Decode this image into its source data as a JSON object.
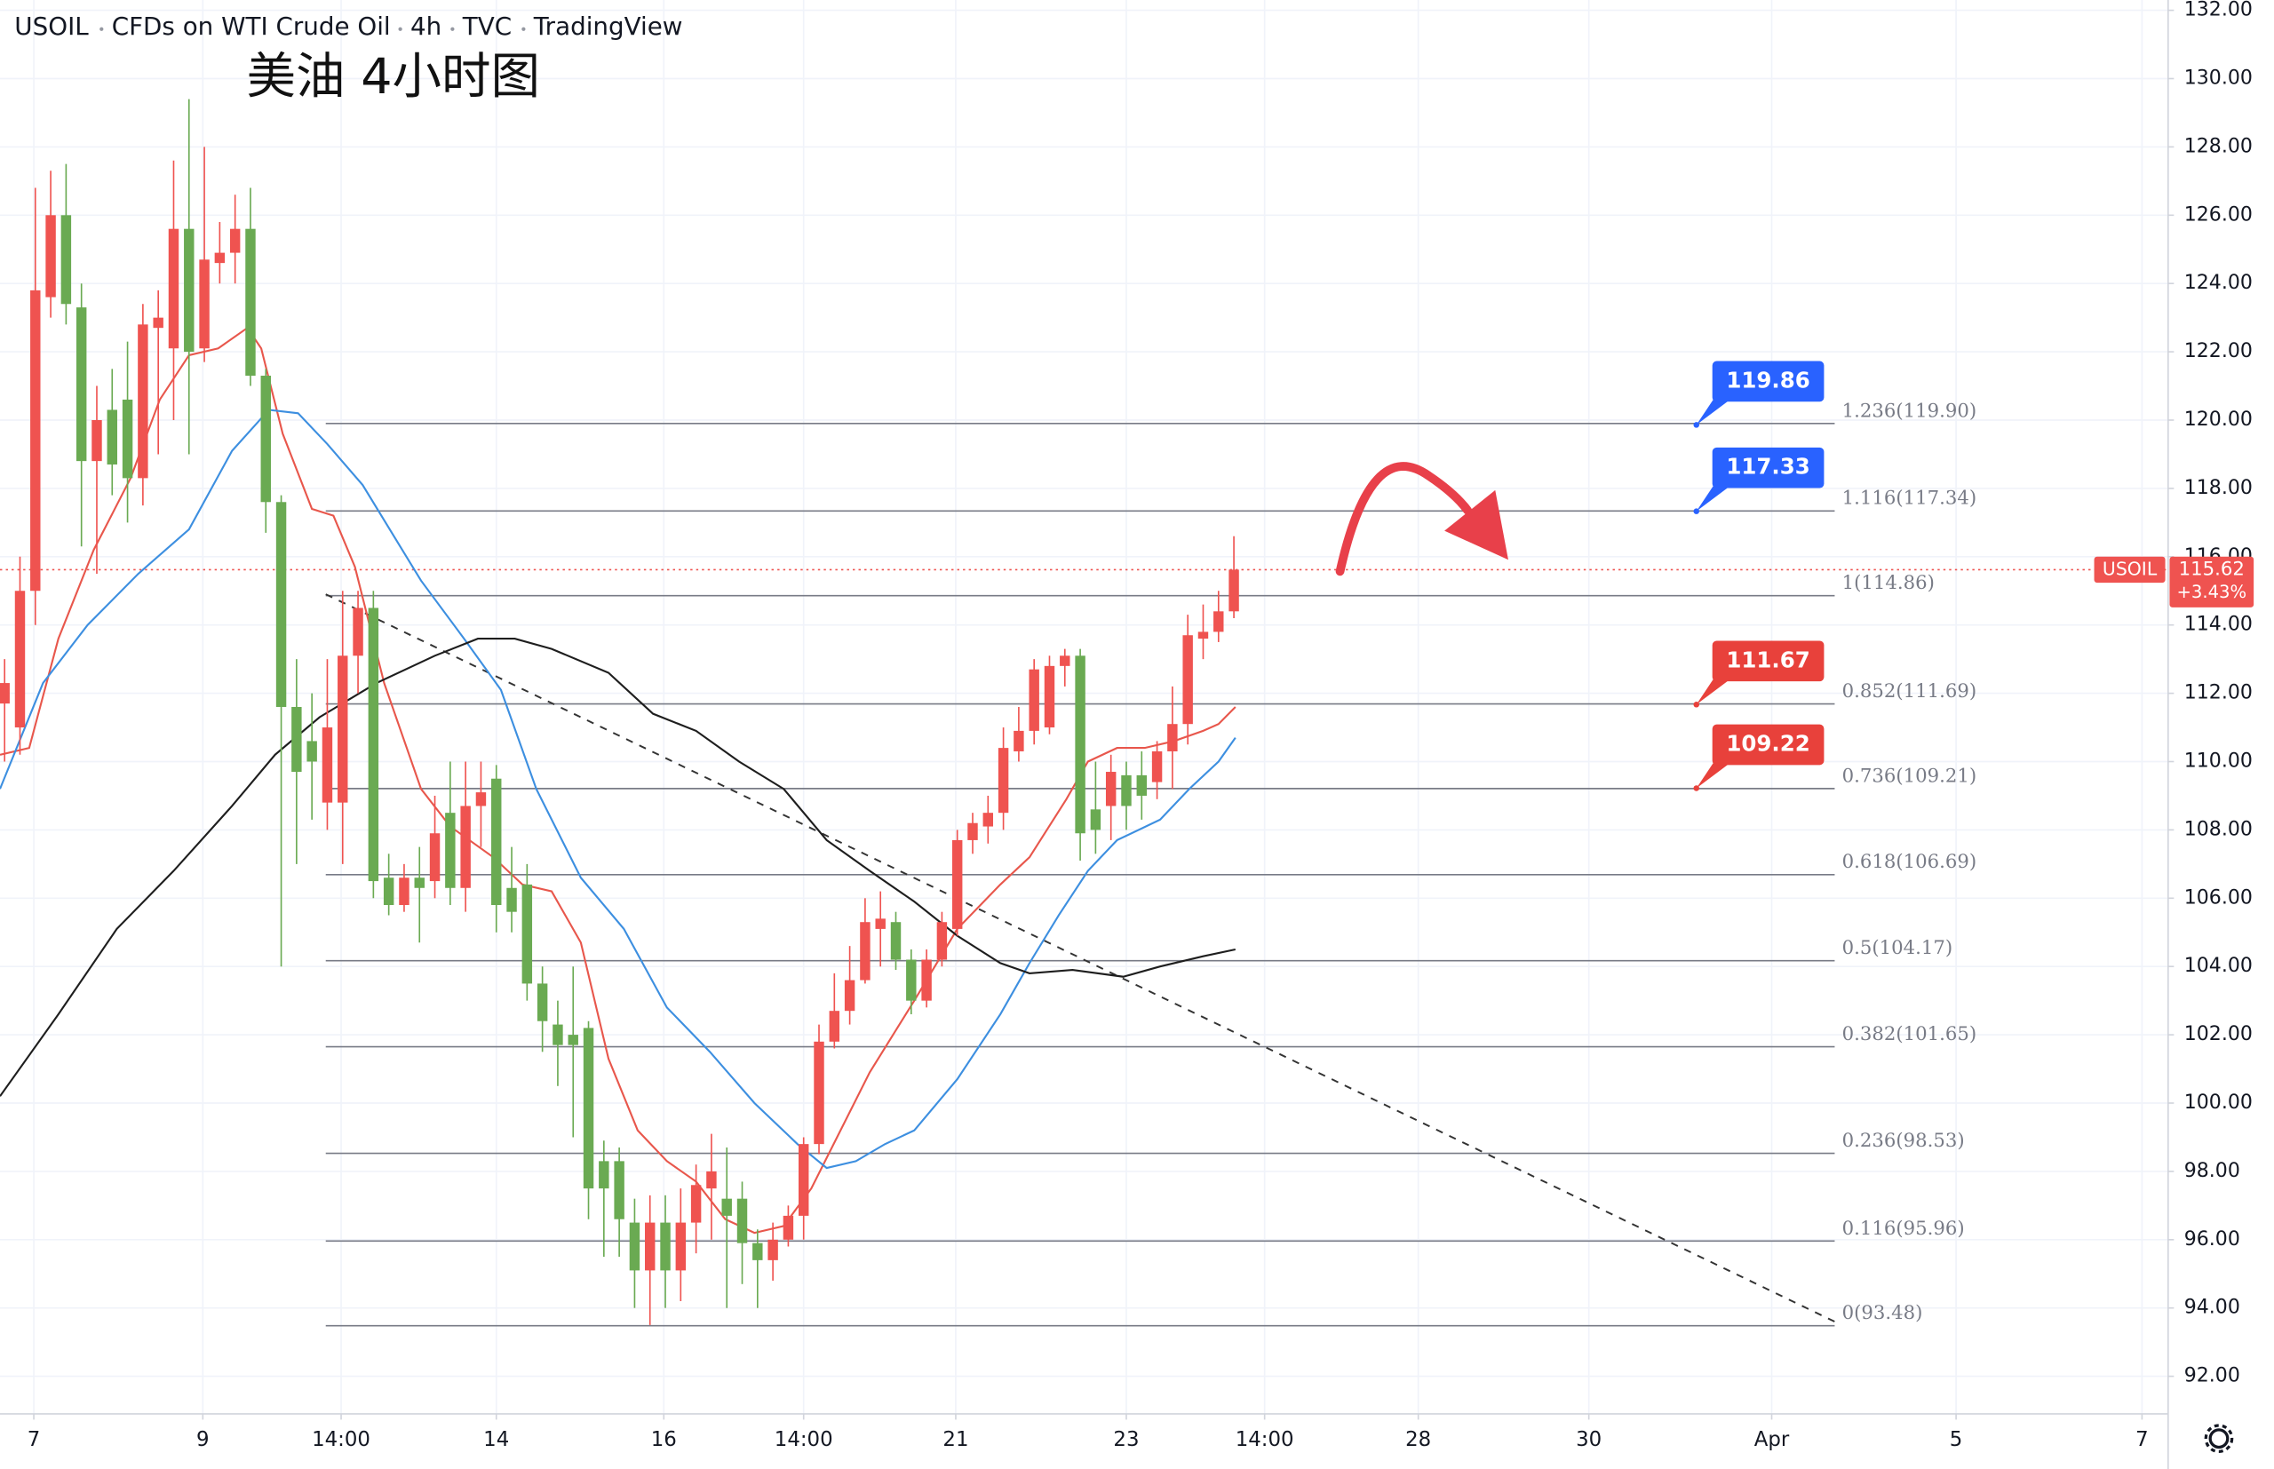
{
  "chart_data": {
    "type": "candlestick",
    "header": [
      "USOIL",
      "CFDs on WTI Crude Oil",
      "4h",
      "TVC",
      "TradingView"
    ],
    "title": "美油 4小时图",
    "up_color": "#ef5350",
    "down_color": "#6aaa52",
    "grid": true,
    "xlim": [
      -0.3,
      140.8
    ],
    "ylim": [
      90.9,
      132.3
    ],
    "xticks": [
      {
        "value": 1.9,
        "label": "7"
      },
      {
        "value": 12.9,
        "label": "9"
      },
      {
        "value": 21.9,
        "label": "14:00"
      },
      {
        "value": 32,
        "label": "14"
      },
      {
        "value": 42.9,
        "label": "16"
      },
      {
        "value": 52,
        "label": "14:00"
      },
      {
        "value": 61.9,
        "label": "21"
      },
      {
        "value": 73,
        "label": "23"
      },
      {
        "value": 82,
        "label": "14:00"
      },
      {
        "value": 92,
        "label": "28"
      },
      {
        "value": 103.1,
        "label": "30"
      },
      {
        "value": 115,
        "label": "Apr"
      },
      {
        "value": 127,
        "label": "5"
      },
      {
        "value": 139.1,
        "label": "7"
      }
    ],
    "yticks": [
      {
        "value": 92,
        "label": "92.00"
      },
      {
        "value": 94,
        "label": "94.00"
      },
      {
        "value": 96,
        "label": "96.00"
      },
      {
        "value": 98,
        "label": "98.00"
      },
      {
        "value": 100,
        "label": "100.00"
      },
      {
        "value": 102,
        "label": "102.00"
      },
      {
        "value": 104,
        "label": "104.00"
      },
      {
        "value": 106,
        "label": "106.00"
      },
      {
        "value": 108,
        "label": "108.00"
      },
      {
        "value": 110,
        "label": "110.00"
      },
      {
        "value": 112,
        "label": "112.00"
      },
      {
        "value": 114,
        "label": "114.00"
      },
      {
        "value": 116,
        "label": "116.00"
      },
      {
        "value": 118,
        "label": "118.00"
      },
      {
        "value": 120,
        "label": "120.00"
      },
      {
        "value": 122,
        "label": "122.00"
      },
      {
        "value": 124,
        "label": "124.00"
      },
      {
        "value": 126,
        "label": "126.00"
      },
      {
        "value": 128,
        "label": "128.00"
      },
      {
        "value": 130,
        "label": "130.00"
      },
      {
        "value": 132,
        "label": "132.00"
      }
    ],
    "open": [
      111.7,
      111.0,
      115.0,
      123.6,
      126.0,
      123.3,
      118.8,
      120.3,
      120.6,
      118.3,
      122.7,
      122.1,
      125.6,
      122.1,
      124.6,
      124.9,
      125.6,
      121.3,
      117.6,
      111.6,
      110.6,
      108.8,
      108.8,
      113.1,
      114.5,
      106.6,
      105.8,
      106.6,
      106.5,
      108.5,
      106.3,
      108.7,
      109.5,
      106.3,
      106.4,
      103.5,
      102.3,
      102.0,
      102.2,
      98.3,
      98.3,
      96.5,
      95.1,
      96.5,
      95.1,
      96.5,
      97.5,
      97.2,
      97.2,
      95.9,
      95.4,
      96.0,
      96.7,
      98.8,
      101.8,
      102.7,
      103.6,
      105.1,
      105.3,
      104.2,
      103.0,
      104.2,
      105.1,
      107.7,
      108.1,
      108.5,
      110.3,
      110.9,
      111.0,
      112.8,
      113.1,
      108.6,
      108.7,
      109.6,
      109.6,
      109.4,
      110.3,
      111.1,
      113.6,
      113.8,
      114.4
    ],
    "high": [
      113.0,
      116.0,
      126.8,
      127.3,
      127.5,
      124.0,
      121.0,
      121.5,
      122.3,
      123.4,
      123.8,
      127.6,
      129.4,
      128.0,
      125.8,
      126.6,
      126.8,
      121.5,
      117.8,
      113.0,
      112.0,
      113.0,
      115.0,
      115.0,
      115.0,
      107.3,
      107.0,
      107.5,
      109.0,
      110.0,
      110.0,
      110.0,
      109.9,
      107.5,
      107.0,
      104.0,
      103.0,
      104.0,
      102.4,
      98.9,
      98.7,
      97.2,
      97.3,
      97.3,
      97.5,
      98.2,
      99.1,
      98.7,
      97.7,
      96.3,
      96.5,
      97.0,
      99.0,
      102.3,
      103.8,
      104.6,
      106.0,
      106.2,
      105.6,
      104.5,
      104.5,
      105.6,
      108.0,
      108.5,
      109.0,
      111.0,
      111.6,
      113.0,
      113.1,
      113.3,
      113.3,
      110.0,
      110.2,
      110.0,
      110.3,
      110.6,
      112.2,
      114.3,
      114.6,
      115.0,
      116.6
    ],
    "low": [
      110.0,
      110.2,
      114.0,
      123.0,
      122.8,
      116.3,
      115.5,
      117.8,
      117.0,
      117.5,
      119.0,
      120.0,
      119.0,
      121.7,
      124.0,
      124.0,
      121.0,
      116.7,
      104.0,
      107.0,
      108.3,
      108.0,
      107.0,
      112.0,
      106.0,
      105.5,
      105.6,
      104.7,
      106.0,
      105.8,
      105.6,
      107.5,
      105.0,
      105.0,
      103.0,
      101.5,
      100.5,
      99.0,
      96.6,
      95.5,
      95.5,
      94.0,
      93.5,
      94.0,
      94.2,
      95.6,
      96.0,
      94.0,
      94.7,
      94.0,
      94.8,
      95.8,
      96.0,
      98.5,
      101.6,
      102.3,
      103.5,
      104.0,
      103.9,
      102.6,
      102.8,
      104.0,
      104.9,
      107.3,
      107.6,
      108.0,
      110.0,
      110.5,
      110.8,
      112.2,
      107.1,
      107.3,
      107.7,
      108.0,
      108.3,
      108.9,
      109.2,
      110.5,
      113.0,
      113.5,
      114.2
    ],
    "close": [
      112.3,
      115.0,
      123.8,
      126.0,
      123.4,
      118.8,
      120.0,
      118.7,
      118.3,
      122.8,
      123.0,
      125.6,
      122.0,
      124.7,
      124.9,
      125.6,
      121.3,
      117.6,
      111.6,
      109.7,
      110.0,
      111.0,
      113.1,
      114.5,
      106.5,
      105.8,
      106.6,
      106.3,
      107.9,
      106.3,
      108.7,
      109.1,
      105.8,
      105.6,
      103.5,
      102.4,
      101.7,
      101.7,
      97.5,
      97.5,
      96.6,
      95.1,
      96.5,
      95.1,
      96.5,
      97.6,
      98.0,
      96.7,
      95.9,
      95.4,
      96.0,
      96.7,
      98.8,
      101.8,
      102.7,
      103.6,
      105.3,
      105.4,
      104.2,
      103.0,
      104.2,
      105.3,
      107.7,
      108.2,
      108.5,
      110.4,
      110.9,
      112.7,
      112.8,
      113.1,
      107.9,
      108.0,
      109.7,
      108.7,
      109.0,
      110.3,
      111.1,
      113.7,
      113.8,
      114.4,
      115.62
    ],
    "lines": [
      {
        "color": "#e8574c",
        "x": [
          -0.3,
          1.6,
          3.5,
          5.8,
          8.2,
          10.1,
          12.0,
          13.9,
          15.8,
          16.7,
          18.1,
          20.0,
          21.4,
          22.8,
          24.7,
          27.1,
          29.0,
          31.8,
          33.7,
          35.6,
          37.5,
          39.3,
          41.2,
          43.1,
          45.0,
          46.9,
          48.8,
          50.7,
          52.5,
          54.4,
          56.3,
          59.2,
          62.0,
          64.8,
          66.7,
          69.1,
          70.5,
          72.4,
          74.2,
          76.1,
          78.0,
          79.0,
          80.1
        ],
        "values": [
          110.2,
          110.4,
          113.6,
          116.2,
          118.3,
          120.6,
          121.9,
          122.1,
          122.7,
          122.1,
          119.6,
          117.4,
          117.2,
          115.7,
          112.3,
          109.2,
          108.1,
          107.2,
          106.4,
          106.2,
          104.7,
          101.3,
          99.2,
          98.3,
          97.7,
          96.6,
          96.2,
          96.4,
          97.5,
          99.2,
          100.9,
          103.0,
          105.1,
          106.4,
          107.2,
          108.9,
          110.0,
          110.4,
          110.4,
          110.6,
          110.9,
          111.1,
          111.6
        ]
      },
      {
        "color": "#3d8fe0",
        "x": [
          -0.3,
          2.5,
          5.4,
          8.7,
          12.0,
          14.8,
          17.2,
          19.1,
          21.0,
          23.3,
          27.1,
          29.9,
          32.3,
          34.6,
          37.5,
          40.3,
          43.1,
          45.9,
          48.8,
          51.6,
          53.5,
          55.4,
          57.3,
          59.2,
          62.0,
          64.8,
          66.7,
          68.6,
          70.5,
          72.4,
          75.2,
          77.1,
          79.0,
          80.1
        ],
        "values": [
          109.2,
          112.3,
          114.0,
          115.5,
          116.8,
          119.1,
          120.3,
          120.2,
          119.3,
          118.1,
          115.3,
          113.6,
          112.1,
          109.2,
          106.6,
          105.1,
          102.8,
          101.5,
          100.0,
          98.8,
          98.1,
          98.3,
          98.8,
          99.2,
          100.7,
          102.6,
          104.1,
          105.5,
          106.8,
          107.7,
          108.3,
          109.2,
          110.0,
          110.7
        ]
      },
      {
        "color": "#1e1e1e",
        "x": [
          -0.3,
          3.5,
          7.3,
          11.0,
          14.8,
          17.6,
          20.5,
          24.2,
          28.0,
          30.8,
          33.2,
          35.6,
          39.3,
          42.2,
          45.0,
          47.8,
          50.7,
          53.5,
          56.3,
          59.2,
          62.0,
          64.8,
          66.7,
          69.5,
          72.8,
          75.2,
          78.0,
          80.1
        ],
        "values": [
          100.2,
          102.6,
          105.1,
          106.8,
          108.7,
          110.2,
          111.3,
          112.3,
          113.1,
          113.6,
          113.6,
          113.3,
          112.6,
          111.4,
          110.9,
          110.0,
          109.2,
          107.7,
          106.8,
          105.9,
          104.9,
          104.1,
          103.8,
          103.9,
          103.7,
          104.0,
          104.3,
          104.5
        ]
      }
    ],
    "fib": {
      "x": [
        20.9,
        119.1
      ],
      "color": "#787b86",
      "levels": [
        {
          "value": 119.9,
          "label": "1.236(119.90)"
        },
        {
          "value": 117.34,
          "label": "1.116(117.34)"
        },
        {
          "value": 114.86,
          "label": "1(114.86)"
        },
        {
          "value": 111.69,
          "label": "0.852(111.69)"
        },
        {
          "value": 109.21,
          "label": "0.736(109.21)"
        },
        {
          "value": 106.69,
          "label": "0.618(106.69)"
        },
        {
          "value": 104.17,
          "label": "0.5(104.17)"
        },
        {
          "value": 101.65,
          "label": "0.382(101.65)"
        },
        {
          "value": 98.53,
          "label": "0.236(98.53)"
        },
        {
          "value": 95.96,
          "label": "0.116(95.96)"
        },
        {
          "value": 93.48,
          "label": "0(93.48)"
        }
      ]
    },
    "trendline": {
      "x": [
        20.9,
        119.1
      ],
      "values": [
        114.9,
        93.6
      ]
    },
    "callouts": {
      "x": 110.1,
      "items": [
        {
          "value": 119.86,
          "color": "#2962ff"
        },
        {
          "value": 117.33,
          "color": "#2962ff"
        },
        {
          "value": 111.67,
          "color": "#e8413b"
        },
        {
          "value": 109.22,
          "color": "#e8413b"
        }
      ]
    },
    "last_price": {
      "name": "USOIL",
      "value": 115.62,
      "change": "+3.43%",
      "color": "#ef5350"
    }
  }
}
